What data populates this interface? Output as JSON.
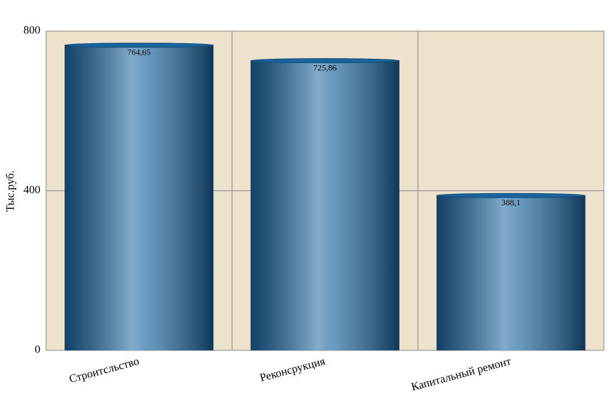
{
  "chart_data": {
    "type": "bar",
    "y_label": "Тыс.руб.",
    "categories": [
      "Строитсльство",
      "Реконсрукция",
      "Капитальный ремонт"
    ],
    "values": [
      764.65,
      725.86,
      388.1
    ],
    "value_labels": [
      "764,65",
      "725,86",
      "388,1"
    ],
    "color": "#1a659f",
    "ylim": [
      0,
      800
    ],
    "yticks": [
      0,
      400,
      800
    ],
    "grid": true
  }
}
